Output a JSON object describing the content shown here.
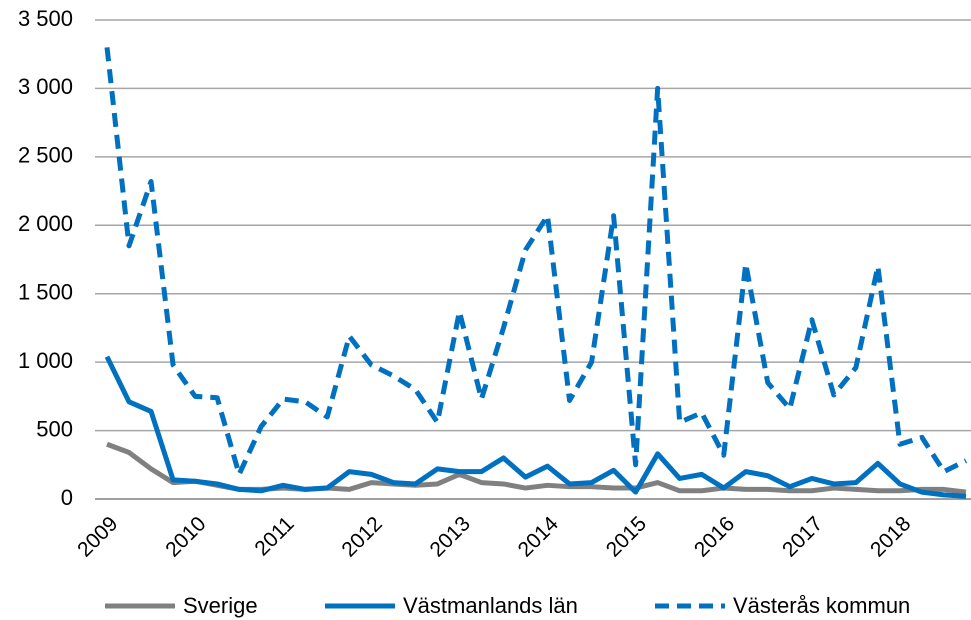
{
  "chart_data": {
    "type": "line",
    "categories": [
      "2009",
      null,
      null,
      null,
      "2010",
      null,
      null,
      null,
      "2011",
      null,
      null,
      null,
      "2012",
      null,
      null,
      null,
      "2013",
      null,
      null,
      null,
      "2014",
      null,
      null,
      null,
      "2015",
      null,
      null,
      null,
      "2016",
      null,
      null,
      null,
      "2017",
      null,
      null,
      null,
      "2018",
      null,
      null,
      null
    ],
    "series": [
      {
        "name": "Sverige",
        "color": "#808080",
        "dashed": false,
        "values": [
          400,
          340,
          220,
          120,
          130,
          100,
          70,
          70,
          80,
          70,
          80,
          70,
          120,
          110,
          100,
          110,
          180,
          120,
          110,
          80,
          100,
          90,
          90,
          80,
          80,
          120,
          60,
          60,
          80,
          70,
          70,
          60,
          60,
          80,
          70,
          60,
          60,
          70,
          70,
          50
        ]
      },
      {
        "name": "Västmanlands län",
        "color": "#0070c0",
        "dashed": false,
        "values": [
          1040,
          710,
          640,
          140,
          130,
          110,
          70,
          60,
          100,
          70,
          80,
          200,
          180,
          120,
          110,
          220,
          200,
          200,
          300,
          160,
          240,
          110,
          120,
          210,
          50,
          330,
          150,
          180,
          80,
          200,
          170,
          90,
          150,
          110,
          120,
          260,
          110,
          50,
          30,
          20
        ]
      },
      {
        "name": "Västerås kommun",
        "color": "#0070c0",
        "dashed": true,
        "values": [
          3300,
          1850,
          2320,
          980,
          750,
          740,
          180,
          530,
          730,
          710,
          600,
          1190,
          980,
          900,
          800,
          560,
          1370,
          730,
          1250,
          1820,
          2070,
          720,
          1000,
          2070,
          250,
          3000,
          560,
          630,
          320,
          1720,
          850,
          660,
          1310,
          760,
          960,
          1700,
          400,
          450,
          200,
          280
        ]
      }
    ],
    "ylim": [
      0,
      3500
    ],
    "yticks": [
      0,
      500,
      {
        "value": 1000,
        "label": "1 000"
      },
      {
        "value": 1500,
        "label": "1 500"
      },
      {
        "value": 2000,
        "label": "2 000"
      },
      {
        "value": 2500,
        "label": "2 500"
      },
      {
        "value": 3000,
        "label": "3 000"
      },
      {
        "value": 3500,
        "label": "3 500"
      }
    ],
    "grid": true,
    "legend": "bottom"
  }
}
